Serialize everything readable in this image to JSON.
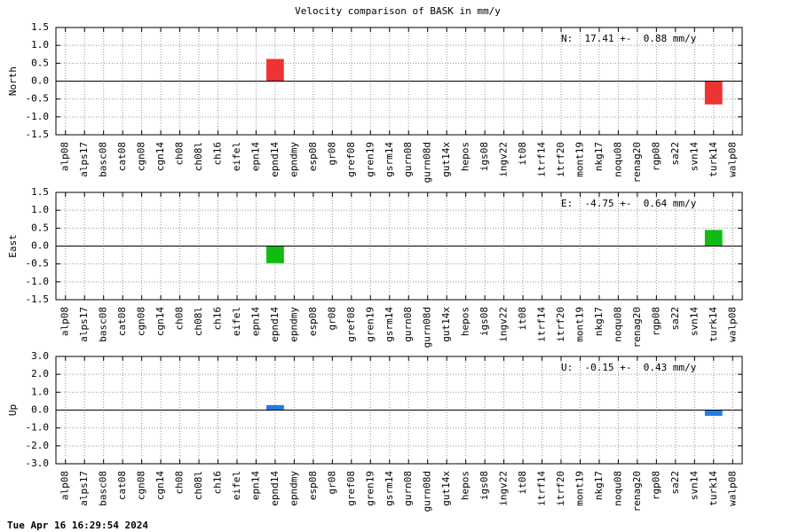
{
  "title": "Velocity comparison of BASK in mm/y",
  "timestamp": "Tue Apr 16 16:29:54 2024",
  "chart_data": [
    {
      "type": "bar",
      "ylabel": "North",
      "annotation": "N:  17.41 +-  0.88 mm/y",
      "color": "#ee3333",
      "grid": true,
      "categories": [
        "alp08",
        "alps17",
        "basc08",
        "cat08",
        "cgn08",
        "cgn14",
        "ch08",
        "ch08l",
        "ch16",
        "eifel",
        "epn14",
        "epnd14",
        "epndmy",
        "esp08",
        "gr08",
        "gref08",
        "gren19",
        "gsrm14",
        "gurn08",
        "gurn08d",
        "gut14x",
        "hepos",
        "igs08",
        "ingv22",
        "it08",
        "itrf14",
        "itrf20",
        "mont19",
        "nkg17",
        "noqu08",
        "renag20",
        "rgp08",
        "sa22",
        "svn14",
        "turk14",
        "walp08"
      ],
      "values": [
        null,
        null,
        null,
        null,
        null,
        null,
        null,
        null,
        null,
        null,
        null,
        0.62,
        null,
        null,
        null,
        null,
        null,
        null,
        null,
        null,
        null,
        null,
        null,
        null,
        null,
        null,
        null,
        null,
        null,
        null,
        null,
        null,
        null,
        null,
        -0.65,
        null
      ],
      "ylim": [
        -1.5,
        1.5
      ],
      "yticks": [
        -1.5,
        {
          "value": -1.0,
          "label": "-1.0"
        },
        -0.5,
        {
          "value": 0,
          "label": "0.0"
        },
        0.5,
        {
          "value": 1.0,
          "label": "1.0"
        },
        1.5
      ]
    },
    {
      "type": "bar",
      "ylabel": "East",
      "annotation": "E:  -4.75 +-  0.64 mm/y",
      "color": "#11bb11",
      "grid": true,
      "categories": [
        "alp08",
        "alps17",
        "basc08",
        "cat08",
        "cgn08",
        "cgn14",
        "ch08",
        "ch08l",
        "ch16",
        "eifel",
        "epn14",
        "epnd14",
        "epndmy",
        "esp08",
        "gr08",
        "gref08",
        "gren19",
        "gsrm14",
        "gurn08",
        "gurn08d",
        "gut14x",
        "hepos",
        "igs08",
        "ingv22",
        "it08",
        "itrf14",
        "itrf20",
        "mont19",
        "nkg17",
        "noqu08",
        "renag20",
        "rgp08",
        "sa22",
        "svn14",
        "turk14",
        "walp08"
      ],
      "values": [
        null,
        null,
        null,
        null,
        null,
        null,
        null,
        null,
        null,
        null,
        null,
        -0.48,
        null,
        null,
        null,
        null,
        null,
        null,
        null,
        null,
        null,
        null,
        null,
        null,
        null,
        null,
        null,
        null,
        null,
        null,
        null,
        null,
        null,
        null,
        0.45,
        null
      ],
      "ylim": [
        -1.5,
        1.5
      ],
      "yticks": [
        -1.5,
        {
          "value": -1.0,
          "label": "-1.0"
        },
        -0.5,
        {
          "value": 0,
          "label": "0.0"
        },
        0.5,
        {
          "value": 1.0,
          "label": "1.0"
        },
        1.5
      ]
    },
    {
      "type": "bar",
      "ylabel": "Up",
      "annotation": "U:  -0.15 +-  0.43 mm/y",
      "color": "#1e7ee8",
      "grid": true,
      "categories": [
        "alp08",
        "alps17",
        "basc08",
        "cat08",
        "cgn08",
        "cgn14",
        "ch08",
        "ch08l",
        "ch16",
        "eifel",
        "epn14",
        "epnd14",
        "epndmy",
        "esp08",
        "gr08",
        "gref08",
        "gren19",
        "gsrm14",
        "gurn08",
        "gurn08d",
        "gut14x",
        "hepos",
        "igs08",
        "ingv22",
        "it08",
        "itrf14",
        "itrf20",
        "mont19",
        "nkg17",
        "noqu08",
        "renag20",
        "rgp08",
        "sa22",
        "svn14",
        "turk14",
        "walp08"
      ],
      "values": [
        null,
        null,
        null,
        null,
        null,
        null,
        null,
        null,
        null,
        null,
        null,
        0.28,
        null,
        null,
        null,
        null,
        null,
        null,
        null,
        null,
        null,
        null,
        null,
        null,
        null,
        null,
        null,
        null,
        null,
        null,
        null,
        null,
        null,
        null,
        -0.32,
        null
      ],
      "ylim": [
        -3.0,
        3.0
      ],
      "yticks": [
        {
          "value": -3.0,
          "label": "-3.0"
        },
        {
          "value": -2.0,
          "label": "-2.0"
        },
        {
          "value": -1.0,
          "label": "-1.0"
        },
        {
          "value": 0,
          "label": "0.0"
        },
        {
          "value": 1.0,
          "label": "1.0"
        },
        {
          "value": 2.0,
          "label": "2.0"
        },
        {
          "value": 3.0,
          "label": "3.0"
        }
      ]
    }
  ]
}
